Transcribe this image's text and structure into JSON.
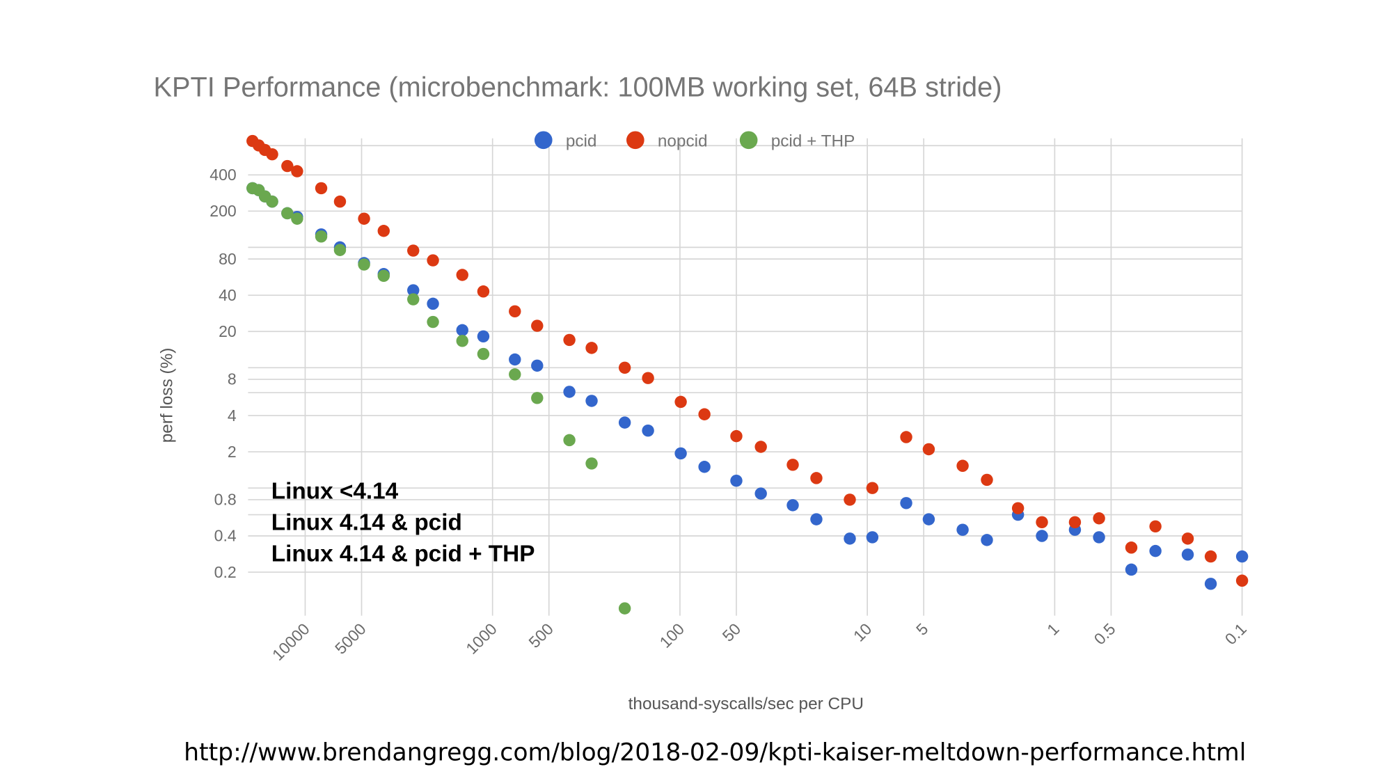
{
  "chart_data": {
    "type": "scatter",
    "title": "KPTI Performance (microbenchmark: 100MB working set, 64B stride)",
    "xlabel": "thousand-syscalls/sec per CPU",
    "ylabel": "perf loss (%)",
    "xscale": "log",
    "x_reversed": true,
    "yscale": "log",
    "xlim": [
      20000,
      0.1
    ],
    "ylim": [
      0.1,
      800
    ],
    "grid": true,
    "legend_position": "top",
    "x_ticks": [
      10000,
      5000,
      1000,
      500,
      100,
      50,
      10,
      5,
      1,
      0.5,
      0.1
    ],
    "x_tick_labels": [
      "10000",
      "5000",
      "1000",
      "500",
      "100",
      "50",
      "10",
      "5",
      "1",
      "0.5",
      "0.1"
    ],
    "y_ticks": [
      400,
      200,
      80,
      40,
      20,
      8,
      4,
      2,
      0.8,
      0.4,
      0.2
    ],
    "y_tick_labels": [
      "400",
      "200",
      "80",
      "40",
      "20",
      "8",
      "4",
      "2",
      "0.8",
      "0.4",
      "0.2"
    ],
    "y_minor_gridlines": [
      700,
      100,
      10,
      6.2,
      1,
      0.6
    ],
    "x": [
      19100,
      17700,
      16400,
      15000,
      12450,
      11040,
      8210,
      6520,
      4850,
      3810,
      2650,
      2080,
      1450,
      1120,
      760,
      578,
      389,
      296,
      197,
      148,
      99,
      74,
      50,
      37,
      25,
      18.7,
      12.4,
      9.4,
      6.2,
      4.7,
      3.1,
      2.3,
      1.57,
      1.17,
      0.78,
      0.58,
      0.39,
      0.29,
      0.195,
      0.147,
      0.1
    ],
    "series": [
      {
        "name": "pcid",
        "color": "#3366cc",
        "values": [
          310,
          299,
          265,
          240,
          192,
          179,
          128,
          100,
          74,
          60,
          44,
          34,
          20.5,
          18.2,
          11.7,
          10.4,
          6.3,
          5.3,
          3.5,
          3.0,
          1.94,
          1.5,
          1.15,
          0.9,
          0.72,
          0.55,
          0.38,
          0.39,
          0.75,
          0.55,
          0.45,
          0.37,
          0.6,
          0.4,
          0.45,
          0.39,
          0.21,
          0.3,
          0.28,
          0.16,
          0.27
        ]
      },
      {
        "name": "nopcid",
        "color": "#dc3912",
        "values": [
          765,
          703,
          645,
          593,
          474,
          429,
          310,
          240,
          173,
          137,
          94,
          78,
          59,
          43,
          29.4,
          22.3,
          17.0,
          14.6,
          10.0,
          8.2,
          5.2,
          4.1,
          2.7,
          2.2,
          1.56,
          1.21,
          0.8,
          1.0,
          2.65,
          2.1,
          1.53,
          1.17,
          0.68,
          0.52,
          0.52,
          0.56,
          0.32,
          0.48,
          0.38,
          0.27,
          0.17
        ]
      },
      {
        "name": "pcid + THP",
        "color": "#6aa84f",
        "values": [
          310,
          299,
          265,
          240,
          192,
          173,
          123,
          95,
          72,
          58,
          37,
          24,
          16.7,
          13.0,
          8.8,
          5.6,
          2.5,
          1.6,
          0.1
        ]
      }
    ],
    "annotations": [
      {
        "text": "Linux <4.14",
        "color": "#f0301a"
      },
      {
        "text": "Linux 4.14 & pcid",
        "color": "#1a33f0"
      },
      {
        "text": "Linux 4.14 & pcid + THP",
        "color": "#6aa33a"
      }
    ]
  },
  "footer": {
    "url": "http://www.brendangregg.com/blog/2018-02-09/kpti-kaiser-meltdown-performance.html"
  }
}
